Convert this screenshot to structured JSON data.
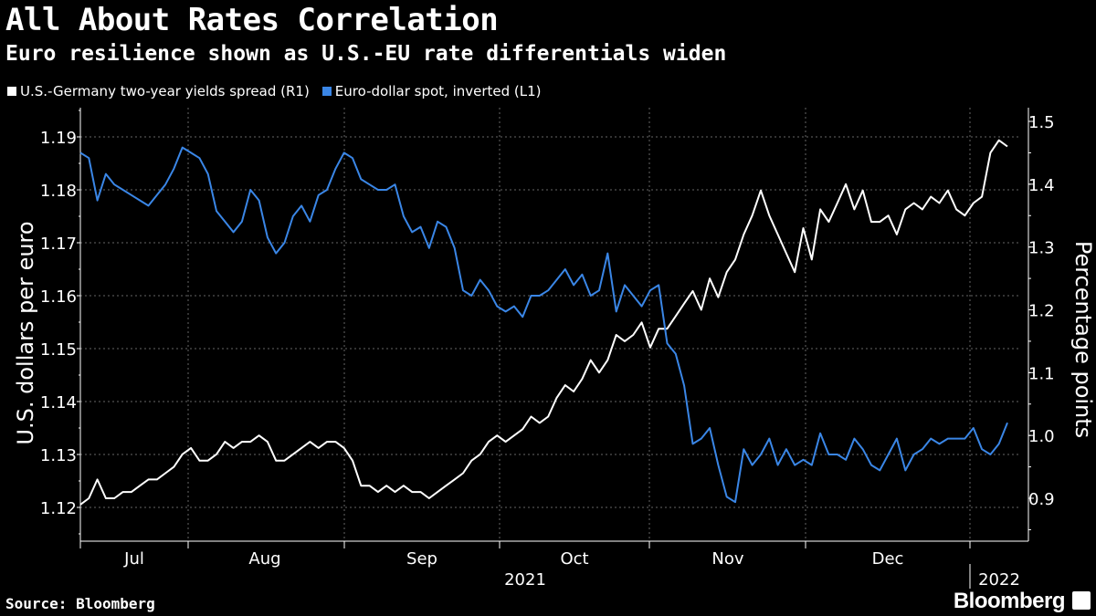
{
  "title": "All About Rates Correlation",
  "subtitle": "Euro resilience shown as U.S.-EU rate differentials widen",
  "source": "Source: Bloomberg",
  "brand": "Bloomberg",
  "colors": {
    "white_series": "#ffffff",
    "blue_series": "#3a86e6",
    "grid": "#666666"
  },
  "chart_data": {
    "type": "line",
    "xlabel": "",
    "x_tick_labels": [
      "Jul",
      "Aug",
      "Sep",
      "Oct",
      "Nov",
      "Dec"
    ],
    "x_year_labels": [
      "2021",
      "2022"
    ],
    "left_axis": {
      "label": "U.S. dollars per euro",
      "ylim": [
        1.115,
        1.195
      ],
      "ticks": [
        "1.12",
        "1.13",
        "1.14",
        "1.15",
        "1.16",
        "1.17",
        "1.18",
        "1.19"
      ],
      "inverted": true
    },
    "right_axis": {
      "label": "Percentage points",
      "ylim": [
        0.85,
        1.52
      ],
      "ticks": [
        "0.9",
        "1.0",
        "1.1",
        "1.2",
        "1.3",
        "1.4",
        "1.5"
      ]
    },
    "grid": true,
    "legend_position": "top-left",
    "series": [
      {
        "name": "U.S.-Germany two-year yields spread (R1)",
        "axis": "right",
        "values": [
          0.89,
          0.9,
          0.93,
          0.9,
          0.9,
          0.91,
          0.91,
          0.92,
          0.93,
          0.93,
          0.94,
          0.95,
          0.97,
          0.98,
          0.96,
          0.96,
          0.97,
          0.99,
          0.98,
          0.99,
          0.99,
          1.0,
          0.99,
          0.96,
          0.96,
          0.97,
          0.98,
          0.99,
          0.98,
          0.99,
          0.99,
          0.98,
          0.96,
          0.92,
          0.92,
          0.91,
          0.92,
          0.91,
          0.92,
          0.91,
          0.91,
          0.9,
          0.91,
          0.92,
          0.93,
          0.94,
          0.96,
          0.97,
          0.99,
          1.0,
          0.99,
          1.0,
          1.01,
          1.03,
          1.02,
          1.03,
          1.06,
          1.08,
          1.07,
          1.09,
          1.12,
          1.1,
          1.12,
          1.16,
          1.15,
          1.16,
          1.18,
          1.14,
          1.17,
          1.17,
          1.19,
          1.21,
          1.23,
          1.2,
          1.25,
          1.22,
          1.26,
          1.28,
          1.32,
          1.35,
          1.39,
          1.35,
          1.32,
          1.29,
          1.26,
          1.33,
          1.28,
          1.36,
          1.34,
          1.37,
          1.4,
          1.36,
          1.39,
          1.34,
          1.34,
          1.35,
          1.32,
          1.36,
          1.37,
          1.36,
          1.38,
          1.37,
          1.39,
          1.36,
          1.35,
          1.37,
          1.38,
          1.45,
          1.47,
          1.46
        ]
      },
      {
        "name": "Euro-dollar spot, inverted (L1)",
        "axis": "left",
        "values": [
          1.187,
          1.186,
          1.178,
          1.183,
          1.181,
          1.18,
          1.179,
          1.178,
          1.177,
          1.179,
          1.181,
          1.184,
          1.188,
          1.187,
          1.186,
          1.183,
          1.176,
          1.174,
          1.172,
          1.174,
          1.18,
          1.178,
          1.171,
          1.168,
          1.17,
          1.175,
          1.177,
          1.174,
          1.179,
          1.18,
          1.184,
          1.187,
          1.186,
          1.182,
          1.181,
          1.18,
          1.18,
          1.181,
          1.175,
          1.172,
          1.173,
          1.169,
          1.174,
          1.173,
          1.169,
          1.161,
          1.16,
          1.163,
          1.161,
          1.158,
          1.157,
          1.158,
          1.156,
          1.16,
          1.16,
          1.161,
          1.163,
          1.165,
          1.162,
          1.164,
          1.16,
          1.161,
          1.168,
          1.157,
          1.162,
          1.16,
          1.158,
          1.161,
          1.162,
          1.151,
          1.149,
          1.143,
          1.132,
          1.133,
          1.135,
          1.128,
          1.122,
          1.121,
          1.131,
          1.128,
          1.13,
          1.133,
          1.128,
          1.131,
          1.128,
          1.129,
          1.128,
          1.134,
          1.13,
          1.13,
          1.129,
          1.133,
          1.131,
          1.128,
          1.127,
          1.13,
          1.133,
          1.127,
          1.13,
          1.131,
          1.133,
          1.132,
          1.133,
          1.133,
          1.133,
          1.135,
          1.131,
          1.13,
          1.132,
          1.136
        ]
      }
    ]
  }
}
